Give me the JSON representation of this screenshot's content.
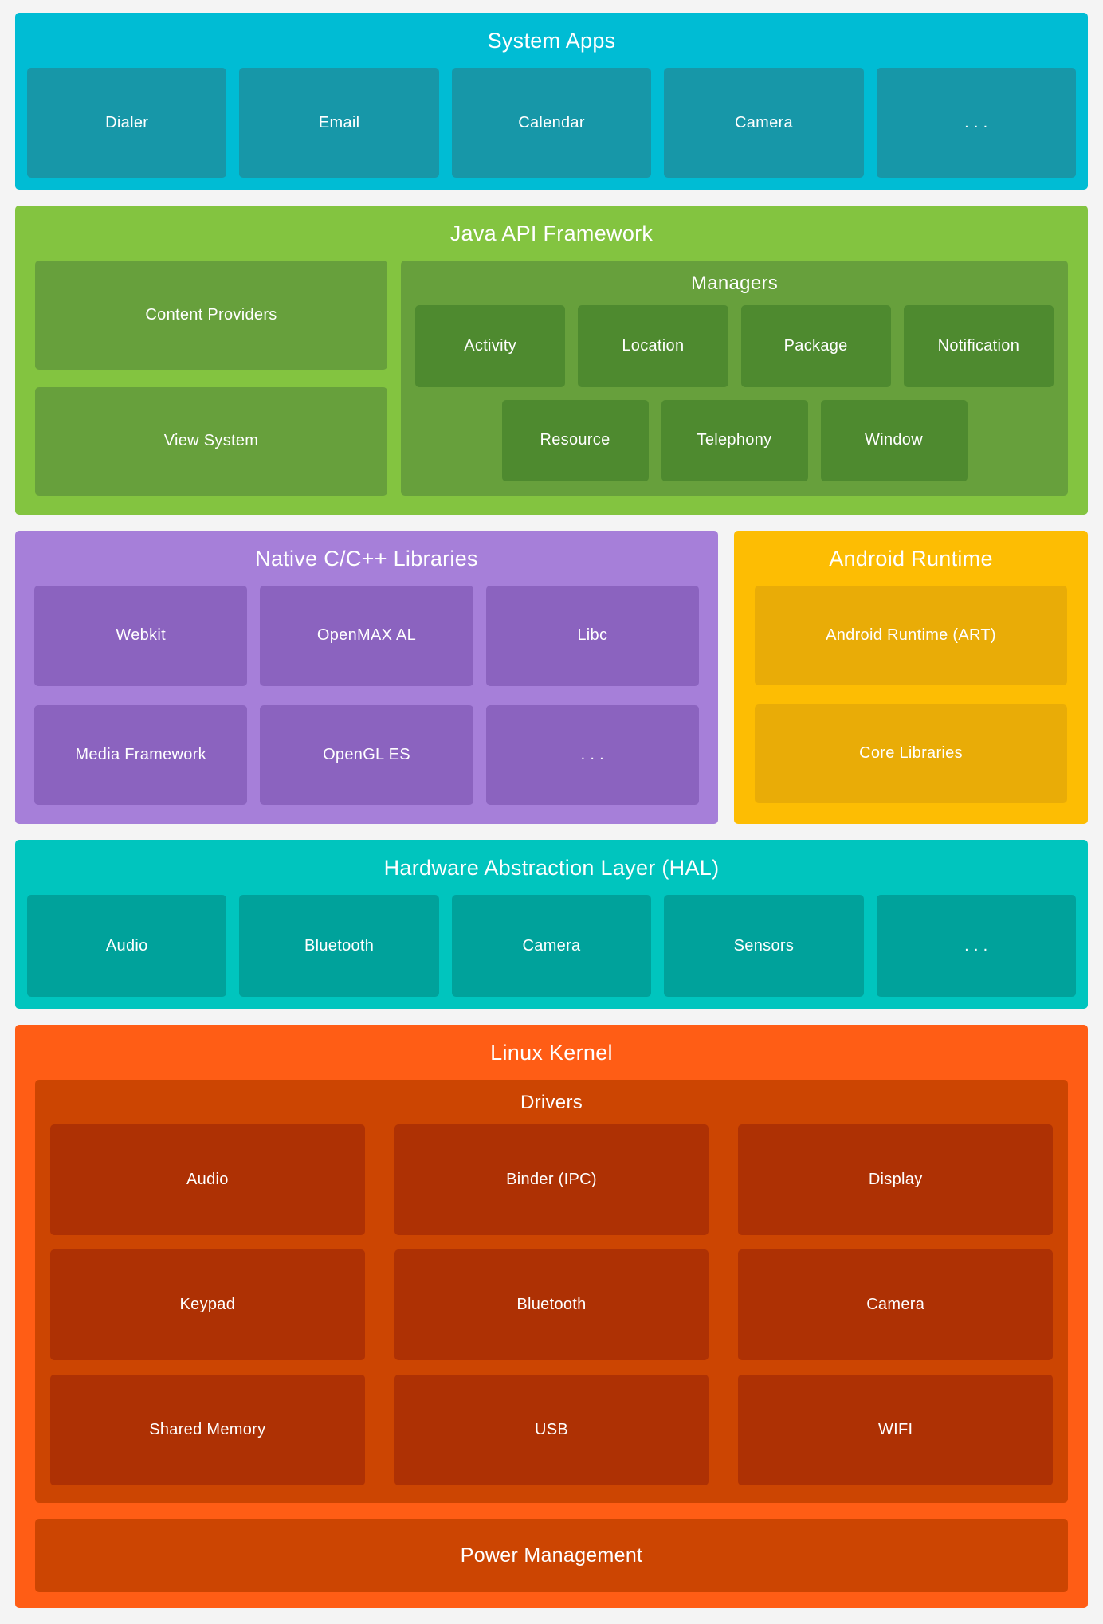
{
  "colors": {
    "page-bg": "#F4F4F4",
    "cyan": "#00BCD4",
    "cyan-dark": "#1797A8",
    "green": "#83C440",
    "green-mid": "#67A03C",
    "green-dark": "#4E8A2F",
    "purple": "#A67FD9",
    "purple-dark": "#8B63BF",
    "gold": "#FDBD03",
    "gold-dark": "#E9AC07",
    "teal": "#00C5BE",
    "teal-dark": "#00A29B",
    "orange": "#FF5D15",
    "orange-mid": "#CC4502",
    "orange-dark": "#AE3104",
    "text": "#FFFFFF"
  },
  "system_apps": {
    "title": "System Apps",
    "items": [
      "Dialer",
      "Email",
      "Calendar",
      "Camera",
      ". . ."
    ]
  },
  "java_framework": {
    "title": "Java API Framework",
    "left_items": [
      "Content Providers",
      "View System"
    ],
    "managers": {
      "title": "Managers",
      "row1": [
        "Activity",
        "Location",
        "Package",
        "Notification"
      ],
      "row2": [
        "Resource",
        "Telephony",
        "Window"
      ]
    }
  },
  "native_libraries": {
    "title": "Native C/C++ Libraries",
    "row1": [
      "Webkit",
      "OpenMAX AL",
      "Libc"
    ],
    "row2": [
      "Media Framework",
      "OpenGL ES",
      ". . ."
    ]
  },
  "android_runtime": {
    "title": "Android Runtime",
    "items": [
      "Android Runtime (ART)",
      "Core Libraries"
    ]
  },
  "hal": {
    "title": "Hardware Abstraction Layer (HAL)",
    "items": [
      "Audio",
      "Bluetooth",
      "Camera",
      "Sensors",
      ". . ."
    ]
  },
  "linux_kernel": {
    "title": "Linux Kernel",
    "drivers": {
      "title": "Drivers",
      "rows": [
        [
          "Audio",
          "Binder (IPC)",
          "Display"
        ],
        [
          "Keypad",
          "Bluetooth",
          "Camera"
        ],
        [
          "Shared Memory",
          "USB",
          "WIFI"
        ]
      ]
    },
    "power_label": "Power Management"
  }
}
